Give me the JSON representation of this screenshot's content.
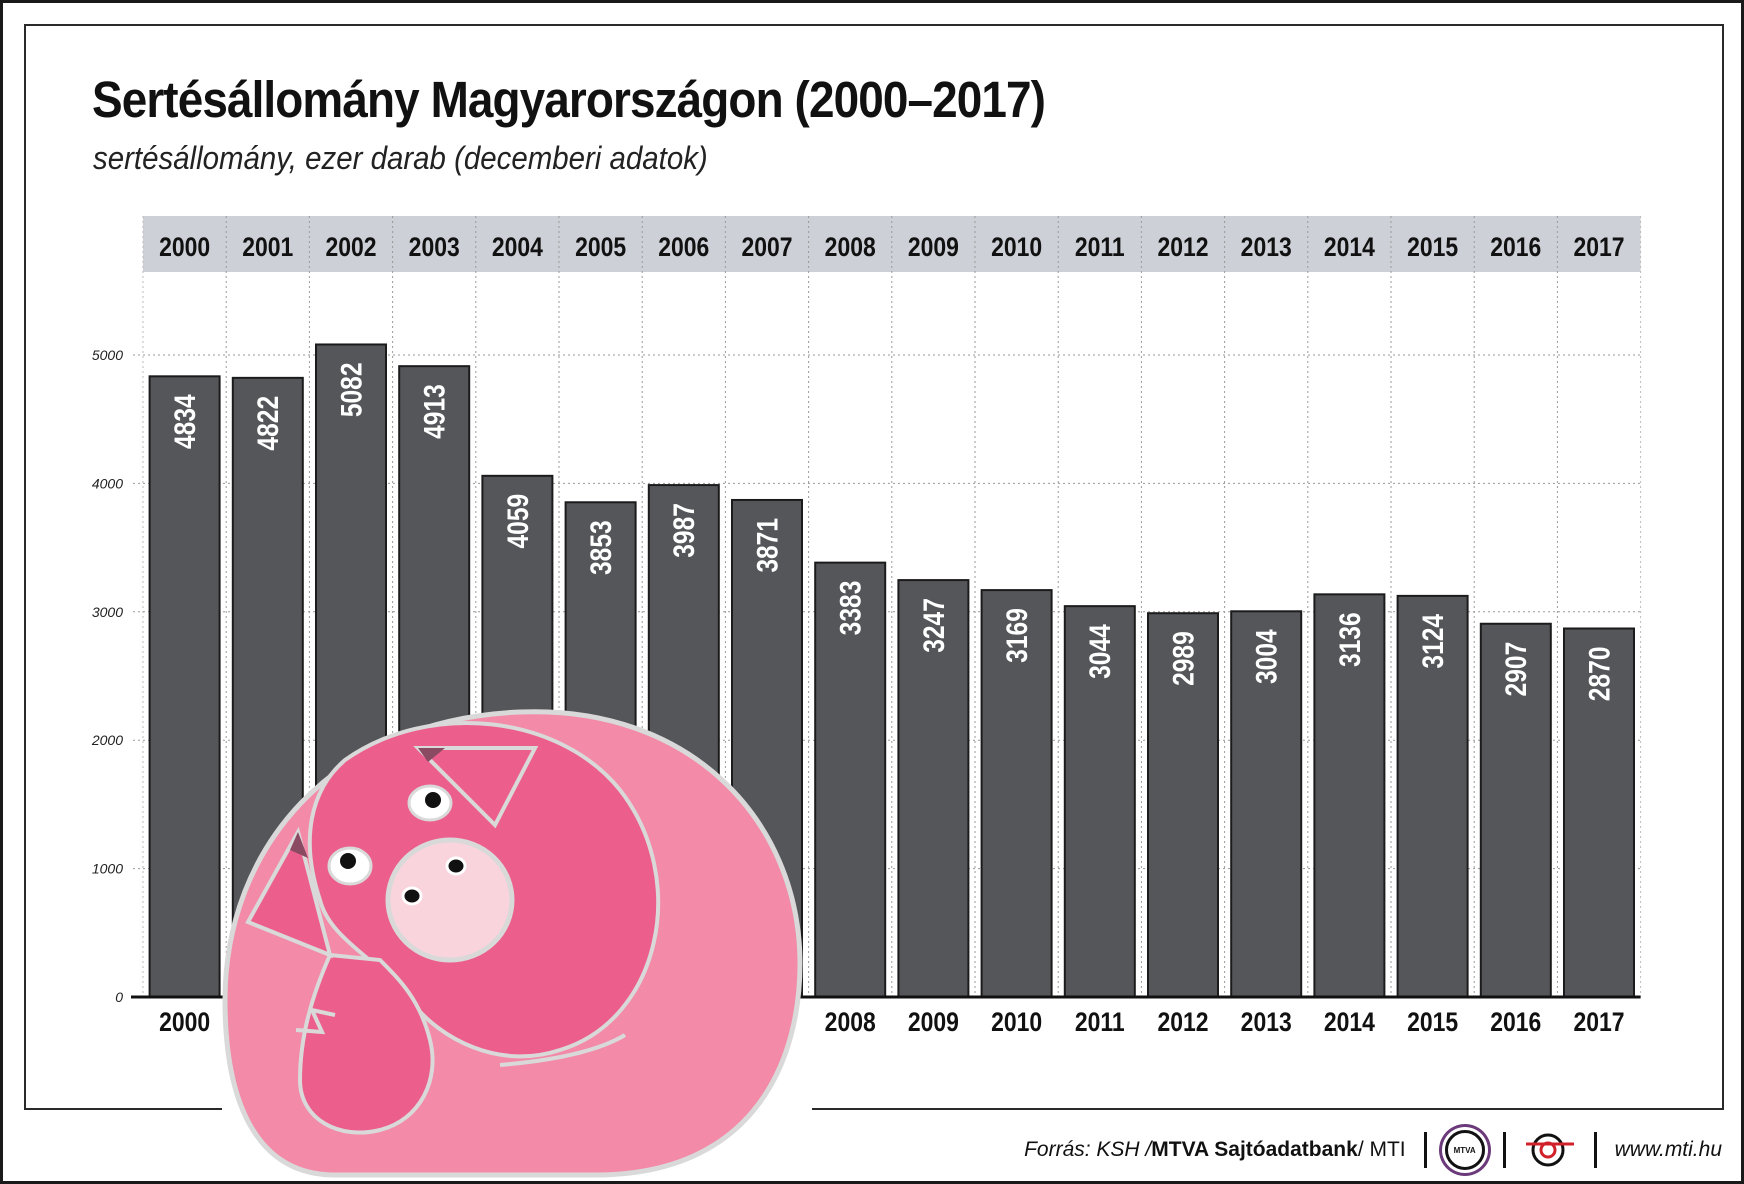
{
  "title": "Sertésállomány Magyarországon (2000–2017)",
  "subtitle": "sertésállomány, ezer darab (decemberi adatok)",
  "footer": {
    "source_label": "Forrás: KSH / ",
    "source_bold": "MTVA Sajtóadatbank",
    "source_tail": " / MTI",
    "logo_text": "MTVA",
    "website": "www.mti.hu"
  },
  "colors": {
    "bar": "#55565a",
    "header_band": "#cdd0d6",
    "grid": "#9a9a9a",
    "pig_light": "#f28aa8",
    "pig_dark": "#ec5f8c",
    "snout": "#f9d4dc"
  },
  "illustration": "pig-illustration",
  "chart_data": {
    "type": "bar",
    "categories": [
      "2000",
      "2001",
      "2002",
      "2003",
      "2004",
      "2005",
      "2006",
      "2007",
      "2008",
      "2009",
      "2010",
      "2011",
      "2012",
      "2013",
      "2014",
      "2015",
      "2016",
      "2017"
    ],
    "values": [
      4834,
      4822,
      5082,
      4913,
      4059,
      3853,
      3987,
      3871,
      3383,
      3247,
      3169,
      3044,
      2989,
      3004,
      3136,
      3124,
      2907,
      2870
    ],
    "yticks": [
      0,
      1000,
      2000,
      3000,
      4000,
      5000
    ],
    "ylim": [
      0,
      5000
    ],
    "grid": true,
    "data_labels": "vertical, inside top of bar",
    "category_labels": "top and bottom"
  }
}
